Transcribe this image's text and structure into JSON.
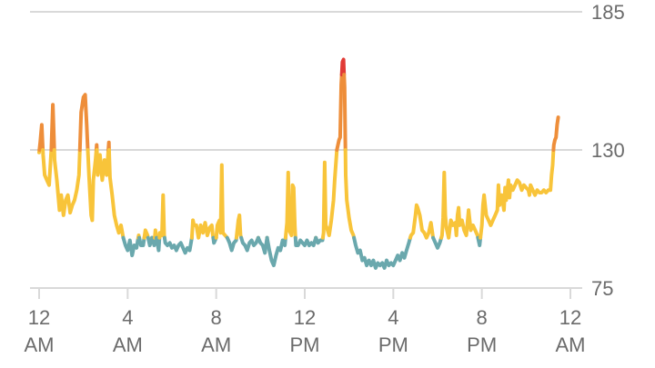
{
  "chart_data": {
    "type": "line",
    "xlabel": "",
    "ylabel": "",
    "x_unit": "hour of day",
    "xlim": [
      0,
      24
    ],
    "ylim": [
      75,
      185
    ],
    "y_ticks": [
      75,
      130,
      185
    ],
    "x_ticks": [
      {
        "x": 0,
        "lines": [
          "12",
          "AM"
        ]
      },
      {
        "x": 4,
        "lines": [
          "4",
          "AM"
        ]
      },
      {
        "x": 8,
        "lines": [
          "8",
          "AM"
        ]
      },
      {
        "x": 12,
        "lines": [
          "12",
          "PM"
        ]
      },
      {
        "x": 16,
        "lines": [
          "4",
          "PM"
        ]
      },
      {
        "x": 20,
        "lines": [
          "8",
          "PM"
        ]
      },
      {
        "x": 24,
        "lines": [
          "12",
          "AM"
        ]
      }
    ],
    "grid": "horizontal lines at y ticks",
    "zones": [
      {
        "min": 0,
        "max": 95,
        "color": "#6aa8ad"
      },
      {
        "min": 95,
        "max": 130,
        "color": "#f8c43a"
      },
      {
        "min": 130,
        "max": 160,
        "color": "#ee8e3a"
      },
      {
        "min": 160,
        "max": 200,
        "color": "#e13b36"
      }
    ],
    "series": [
      {
        "points": [
          [
            0.0,
            129
          ],
          [
            0.05,
            133
          ],
          [
            0.12,
            140
          ],
          [
            0.18,
            128
          ],
          [
            0.25,
            120
          ],
          [
            0.35,
            118
          ],
          [
            0.45,
            116
          ],
          [
            0.55,
            130
          ],
          [
            0.62,
            148
          ],
          [
            0.7,
            126
          ],
          [
            0.8,
            118
          ],
          [
            0.92,
            106
          ],
          [
            1.0,
            112
          ],
          [
            1.1,
            104
          ],
          [
            1.2,
            110
          ],
          [
            1.3,
            112
          ],
          [
            1.4,
            105
          ],
          [
            1.5,
            108
          ],
          [
            1.6,
            110
          ],
          [
            1.7,
            114
          ],
          [
            1.8,
            120
          ],
          [
            1.9,
            145
          ],
          [
            2.0,
            151
          ],
          [
            2.08,
            152
          ],
          [
            2.15,
            140
          ],
          [
            2.25,
            120
          ],
          [
            2.35,
            104
          ],
          [
            2.4,
            102
          ],
          [
            2.45,
            118
          ],
          [
            2.55,
            126
          ],
          [
            2.6,
            132
          ],
          [
            2.65,
            120
          ],
          [
            2.75,
            128
          ],
          [
            2.85,
            118
          ],
          [
            2.95,
            126
          ],
          [
            3.05,
            120
          ],
          [
            3.15,
            133
          ],
          [
            3.2,
            119
          ],
          [
            3.3,
            112
          ],
          [
            3.4,
            104
          ],
          [
            3.5,
            100
          ],
          [
            3.6,
            97
          ],
          [
            3.7,
            100
          ],
          [
            3.8,
            95
          ],
          [
            3.9,
            92
          ],
          [
            4.0,
            90
          ],
          [
            4.1,
            94
          ],
          [
            4.2,
            88
          ],
          [
            4.3,
            92
          ],
          [
            4.4,
            91
          ],
          [
            4.5,
            96
          ],
          [
            4.6,
            92
          ],
          [
            4.7,
            92
          ],
          [
            4.8,
            98
          ],
          [
            4.9,
            96
          ],
          [
            5.0,
            92
          ],
          [
            5.1,
            95
          ],
          [
            5.2,
            92
          ],
          [
            5.25,
            98
          ],
          [
            5.3,
            95
          ],
          [
            5.4,
            90
          ],
          [
            5.45,
            97
          ],
          [
            5.55,
            96
          ],
          [
            5.6,
            112
          ],
          [
            5.65,
            96
          ],
          [
            5.7,
            93
          ],
          [
            5.8,
            92
          ],
          [
            5.9,
            93
          ],
          [
            6.0,
            91
          ],
          [
            6.1,
            92
          ],
          [
            6.2,
            90
          ],
          [
            6.3,
            92
          ],
          [
            6.4,
            93
          ],
          [
            6.5,
            91
          ],
          [
            6.6,
            89
          ],
          [
            6.7,
            91
          ],
          [
            6.8,
            90
          ],
          [
            6.9,
            95
          ],
          [
            6.95,
            102
          ],
          [
            7.0,
            100
          ],
          [
            7.1,
            100
          ],
          [
            7.2,
            95
          ],
          [
            7.3,
            100
          ],
          [
            7.4,
            97
          ],
          [
            7.5,
            101
          ],
          [
            7.6,
            96
          ],
          [
            7.7,
            99
          ],
          [
            7.8,
            100
          ],
          [
            7.85,
            96
          ],
          [
            7.9,
            93
          ],
          [
            8.0,
            95
          ],
          [
            8.05,
            100
          ],
          [
            8.15,
            102
          ],
          [
            8.2,
            97
          ],
          [
            8.25,
            124
          ],
          [
            8.3,
            97
          ],
          [
            8.4,
            96
          ],
          [
            8.5,
            95
          ],
          [
            8.6,
            93
          ],
          [
            8.7,
            90
          ],
          [
            8.8,
            93
          ],
          [
            8.9,
            94
          ],
          [
            9.0,
            102
          ],
          [
            9.05,
            104
          ],
          [
            9.1,
            96
          ],
          [
            9.2,
            93
          ],
          [
            9.3,
            92
          ],
          [
            9.4,
            90
          ],
          [
            9.5,
            93
          ],
          [
            9.6,
            94
          ],
          [
            9.7,
            92
          ],
          [
            9.8,
            93
          ],
          [
            9.9,
            95
          ],
          [
            10.0,
            93
          ],
          [
            10.1,
            92
          ],
          [
            10.2,
            89
          ],
          [
            10.3,
            95
          ],
          [
            10.4,
            90
          ],
          [
            10.5,
            86
          ],
          [
            10.6,
            84
          ],
          [
            10.7,
            88
          ],
          [
            10.8,
            91
          ],
          [
            10.9,
            90
          ],
          [
            11.0,
            94
          ],
          [
            11.1,
            92
          ],
          [
            11.2,
            101
          ],
          [
            11.25,
            121
          ],
          [
            11.3,
            98
          ],
          [
            11.4,
            96
          ],
          [
            11.45,
            116
          ],
          [
            11.5,
            115
          ],
          [
            11.55,
            100
          ],
          [
            11.6,
            92
          ],
          [
            11.7,
            92
          ],
          [
            11.8,
            94
          ],
          [
            11.9,
            93
          ],
          [
            12.0,
            92
          ],
          [
            12.1,
            94
          ],
          [
            12.2,
            92
          ],
          [
            12.3,
            93
          ],
          [
            12.4,
            92
          ],
          [
            12.5,
            95
          ],
          [
            12.55,
            94
          ],
          [
            12.6,
            93
          ],
          [
            12.7,
            94
          ],
          [
            12.8,
            94
          ],
          [
            12.85,
            97
          ],
          [
            12.9,
            125
          ],
          [
            12.95,
            100
          ],
          [
            13.0,
            99
          ],
          [
            13.1,
            96
          ],
          [
            13.2,
            102
          ],
          [
            13.3,
            110
          ],
          [
            13.35,
            118
          ],
          [
            13.45,
            130
          ],
          [
            13.55,
            134
          ],
          [
            13.6,
            135
          ],
          [
            13.65,
            156
          ],
          [
            13.7,
            165
          ],
          [
            13.75,
            166
          ],
          [
            13.8,
            155
          ],
          [
            13.85,
            120
          ],
          [
            13.9,
            110
          ],
          [
            14.0,
            103
          ],
          [
            14.1,
            98
          ],
          [
            14.2,
            96
          ],
          [
            14.3,
            92
          ],
          [
            14.4,
            89
          ],
          [
            14.5,
            90
          ],
          [
            14.6,
            86
          ],
          [
            14.7,
            87
          ],
          [
            14.8,
            84
          ],
          [
            14.9,
            86
          ],
          [
            15.0,
            84
          ],
          [
            15.1,
            86
          ],
          [
            15.2,
            83
          ],
          [
            15.3,
            85
          ],
          [
            15.4,
            84
          ],
          [
            15.5,
            85
          ],
          [
            15.6,
            83
          ],
          [
            15.7,
            86
          ],
          [
            15.8,
            84
          ],
          [
            15.9,
            85
          ],
          [
            16.0,
            84
          ],
          [
            16.1,
            86
          ],
          [
            16.2,
            88
          ],
          [
            16.3,
            86
          ],
          [
            16.4,
            89
          ],
          [
            16.5,
            87
          ],
          [
            16.6,
            90
          ],
          [
            16.7,
            93
          ],
          [
            16.8,
            96
          ],
          [
            16.9,
            97
          ],
          [
            17.0,
            104
          ],
          [
            17.05,
            108
          ],
          [
            17.1,
            107
          ],
          [
            17.2,
            104
          ],
          [
            17.3,
            98
          ],
          [
            17.4,
            97
          ],
          [
            17.5,
            95
          ],
          [
            17.6,
            97
          ],
          [
            17.7,
            101
          ],
          [
            17.8,
            95
          ],
          [
            17.9,
            93
          ],
          [
            18.0,
            91
          ],
          [
            18.1,
            93
          ],
          [
            18.2,
            96
          ],
          [
            18.25,
            103
          ],
          [
            18.3,
            121
          ],
          [
            18.35,
            104
          ],
          [
            18.4,
            99
          ],
          [
            18.5,
            95
          ],
          [
            18.6,
            102
          ],
          [
            18.7,
            100
          ],
          [
            18.8,
            101
          ],
          [
            18.85,
            96
          ],
          [
            18.9,
            104
          ],
          [
            18.95,
            107
          ],
          [
            19.0,
            100
          ],
          [
            19.1,
            102
          ],
          [
            19.2,
            98
          ],
          [
            19.3,
            96
          ],
          [
            19.4,
            106
          ],
          [
            19.5,
            98
          ],
          [
            19.6,
            100
          ],
          [
            19.7,
            98
          ],
          [
            19.8,
            96
          ],
          [
            19.9,
            92
          ],
          [
            20.0,
            100
          ],
          [
            20.05,
            108
          ],
          [
            20.1,
            112
          ],
          [
            20.2,
            104
          ],
          [
            20.3,
            102
          ],
          [
            20.4,
            100
          ],
          [
            20.5,
            102
          ],
          [
            20.6,
            104
          ],
          [
            20.7,
            106
          ],
          [
            20.75,
            116
          ],
          [
            20.8,
            108
          ],
          [
            20.9,
            112
          ],
          [
            21.0,
            106
          ],
          [
            21.05,
            115
          ],
          [
            21.1,
            110
          ],
          [
            21.2,
            118
          ],
          [
            21.25,
            111
          ],
          [
            21.3,
            116
          ],
          [
            21.4,
            114
          ],
          [
            21.5,
            116
          ],
          [
            21.6,
            118
          ],
          [
            21.7,
            117
          ],
          [
            21.8,
            114
          ],
          [
            21.9,
            116
          ],
          [
            22.0,
            115
          ],
          [
            22.1,
            114
          ],
          [
            22.15,
            112
          ],
          [
            22.2,
            116
          ],
          [
            22.3,
            114
          ],
          [
            22.4,
            112
          ],
          [
            22.5,
            114
          ],
          [
            22.6,
            113
          ],
          [
            22.7,
            113
          ],
          [
            22.8,
            114
          ],
          [
            22.9,
            113
          ],
          [
            23.0,
            114
          ],
          [
            23.1,
            114
          ],
          [
            23.15,
            120
          ],
          [
            23.2,
            124
          ],
          [
            23.25,
            132
          ],
          [
            23.3,
            134
          ],
          [
            23.35,
            135
          ],
          [
            23.4,
            140
          ],
          [
            23.45,
            143
          ]
        ]
      }
    ]
  }
}
